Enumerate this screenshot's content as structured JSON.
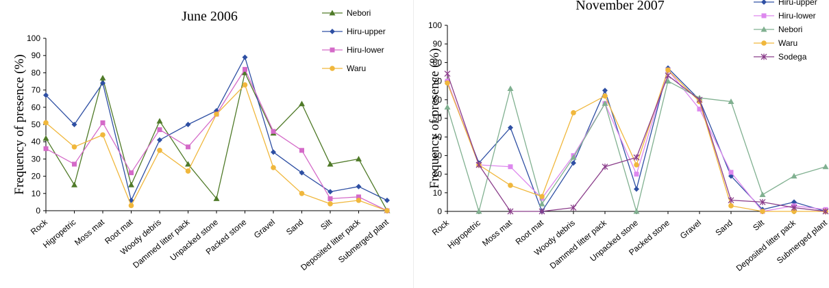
{
  "chart_data": [
    {
      "type": "line",
      "title": "June 2006",
      "xlabel": "",
      "ylabel": "Frequency of presence (%)",
      "ylim": [
        0,
        100
      ],
      "yticks": [
        0,
        10,
        20,
        30,
        40,
        50,
        60,
        70,
        80,
        90,
        100
      ],
      "grid": false,
      "legend": "top-right",
      "categories": [
        "Rock",
        "Higropetric",
        "Moss mat",
        "Root mat",
        "Woody debris",
        "Dammed litter pack",
        "Unpacked stone",
        "Packed stone",
        "Gravel",
        "Sand",
        "Silt",
        "Deposited litter pack",
        "Submerged plant"
      ],
      "series": [
        {
          "name": "Nebori",
          "color": "#4f7a28",
          "marker": "triangle",
          "values": [
            42,
            15,
            77,
            15,
            52,
            27,
            7,
            80,
            45,
            62,
            27,
            30,
            0
          ]
        },
        {
          "name": "Hiru-upper",
          "color": "#2e4fa3",
          "marker": "diamond",
          "values": [
            67,
            50,
            74,
            6,
            41,
            50,
            58,
            89,
            34,
            22,
            11,
            14,
            6
          ]
        },
        {
          "name": "Hiru-lower",
          "color": "#d46ac8",
          "marker": "square",
          "values": [
            36,
            27,
            51,
            22,
            47,
            37,
            56,
            82,
            46,
            35,
            7,
            8,
            0
          ]
        },
        {
          "name": "Waru",
          "color": "#f0b73c",
          "marker": "circle",
          "values": [
            51,
            37,
            44,
            3,
            35,
            23,
            56,
            73,
            25,
            10,
            4,
            6,
            0
          ]
        }
      ]
    },
    {
      "type": "line",
      "title": "November 2007",
      "xlabel": "",
      "ylabel": "Frequency of presence (%)",
      "ylim": [
        0,
        100
      ],
      "yticks": [
        0,
        10,
        20,
        30,
        40,
        50,
        60,
        70,
        80,
        90,
        100
      ],
      "grid": false,
      "legend": "top-right",
      "categories": [
        "Rock",
        "Higropetric",
        "Moss mat",
        "Root mat",
        "Woody debris",
        "Dammed litter pack",
        "Unpacked stone",
        "Packed stone",
        "Gravel",
        "Sand",
        "Silt",
        "Deposited litter pack",
        "Submerged plant"
      ],
      "series": [
        {
          "name": "Hiru-upper",
          "color": "#2e4fa3",
          "marker": "diamond",
          "values": [
            69,
            26,
            45,
            0,
            26,
            65,
            12,
            77,
            60,
            19,
            1,
            5,
            0
          ]
        },
        {
          "name": "Hiru-lower",
          "color": "#dd88ee",
          "marker": "square",
          "values": [
            70,
            25,
            24,
            7,
            30,
            58,
            20,
            76,
            55,
            21,
            0,
            3,
            1
          ]
        },
        {
          "name": "Nebori",
          "color": "#80b090",
          "marker": "triangle",
          "values": [
            56,
            0,
            66,
            4,
            29,
            58,
            0,
            70,
            61,
            59,
            9,
            19,
            24
          ]
        },
        {
          "name": "Waru",
          "color": "#f0b73c",
          "marker": "circle",
          "values": [
            69,
            25,
            14,
            8,
            53,
            62,
            25,
            76,
            59,
            3,
            0,
            0,
            0
          ]
        },
        {
          "name": "Sodega",
          "color": "#8a3d8a",
          "marker": "cross",
          "values": [
            74,
            25,
            0,
            0,
            2,
            24,
            29,
            73,
            60,
            6,
            5,
            2,
            0
          ]
        }
      ]
    }
  ]
}
